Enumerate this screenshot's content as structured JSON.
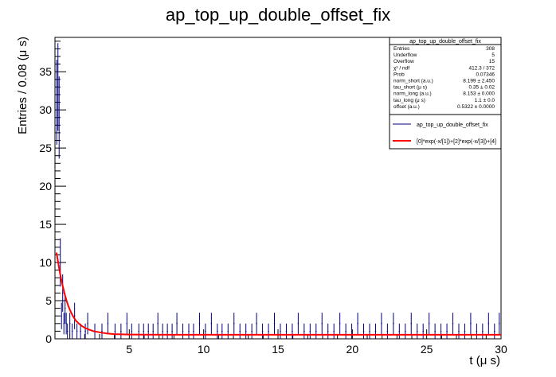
{
  "chart_data": {
    "type": "bar",
    "title": "ap_top_up_double_offset_fix",
    "xlabel": "t (μ s)",
    "ylabel": "Entries / 0.08 (μ s)",
    "xlim": [
      0,
      30
    ],
    "ylim": [
      0,
      39.5
    ],
    "x_ticks": [
      5,
      10,
      15,
      20,
      25,
      30
    ],
    "y_ticks": [
      0,
      5,
      10,
      15,
      20,
      25,
      30,
      35
    ],
    "bin_width": 0.08,
    "grid": false,
    "histogram": {
      "name": "ap_top_up_double_offset_fix",
      "color": "#000080",
      "style": "error bars",
      "points": [
        [
          0.12,
          31
        ],
        [
          0.2,
          33
        ],
        [
          0.28,
          29
        ],
        [
          0.36,
          10
        ],
        [
          0.44,
          3
        ],
        [
          0.52,
          6
        ],
        [
          0.6,
          2
        ],
        [
          0.68,
          4
        ],
        [
          0.76,
          2
        ],
        [
          0.84,
          1
        ],
        [
          1.0,
          2
        ],
        [
          1.16,
          1
        ],
        [
          1.32,
          3
        ],
        [
          1.48,
          1
        ],
        [
          1.72,
          1
        ],
        [
          2.04,
          1
        ],
        [
          2.2,
          2
        ],
        [
          2.68,
          1
        ],
        [
          3.16,
          1
        ],
        [
          3.56,
          2
        ],
        [
          4.04,
          1
        ],
        [
          4.44,
          1
        ],
        [
          4.84,
          2
        ],
        [
          5.16,
          1
        ],
        [
          5.64,
          1
        ],
        [
          5.96,
          1
        ],
        [
          6.28,
          1
        ],
        [
          6.6,
          1
        ],
        [
          6.92,
          2
        ],
        [
          7.24,
          1
        ],
        [
          7.56,
          1
        ],
        [
          7.88,
          1
        ],
        [
          8.2,
          2
        ],
        [
          8.6,
          1
        ],
        [
          9.0,
          1
        ],
        [
          9.32,
          1
        ],
        [
          9.72,
          2
        ],
        [
          10.12,
          1
        ],
        [
          10.52,
          2
        ],
        [
          10.92,
          1
        ],
        [
          11.24,
          1
        ],
        [
          11.64,
          1
        ],
        [
          12.04,
          2
        ],
        [
          12.44,
          1
        ],
        [
          12.84,
          1
        ],
        [
          13.24,
          1
        ],
        [
          13.56,
          2
        ],
        [
          13.96,
          1
        ],
        [
          14.36,
          1
        ],
        [
          14.76,
          2
        ],
        [
          15.16,
          1
        ],
        [
          15.56,
          1
        ],
        [
          15.96,
          1
        ],
        [
          16.36,
          2
        ],
        [
          16.76,
          1
        ],
        [
          17.16,
          1
        ],
        [
          17.56,
          1
        ],
        [
          17.96,
          2
        ],
        [
          18.36,
          1
        ],
        [
          18.76,
          1
        ],
        [
          19.16,
          2
        ],
        [
          19.56,
          1
        ],
        [
          19.96,
          1
        ],
        [
          20.36,
          2
        ],
        [
          20.76,
          1
        ],
        [
          21.16,
          1
        ],
        [
          21.56,
          1
        ],
        [
          21.96,
          2
        ],
        [
          22.36,
          1
        ],
        [
          22.76,
          2
        ],
        [
          23.16,
          1
        ],
        [
          23.56,
          1
        ],
        [
          23.96,
          2
        ],
        [
          24.36,
          1
        ],
        [
          24.76,
          1
        ],
        [
          25.16,
          2
        ],
        [
          25.56,
          1
        ],
        [
          25.96,
          1
        ],
        [
          26.36,
          1
        ],
        [
          26.76,
          2
        ],
        [
          27.16,
          1
        ],
        [
          27.56,
          1
        ],
        [
          27.96,
          2
        ],
        [
          28.36,
          1
        ],
        [
          28.76,
          1
        ],
        [
          29.16,
          2
        ],
        [
          29.56,
          1
        ],
        [
          29.88,
          2
        ]
      ]
    },
    "fit": {
      "name": "[0]*exp(-x/[1])+[2]*exp(-x/[3])+[4]",
      "color": "#ff0000",
      "curve": [
        [
          0.1,
          11.3
        ],
        [
          0.2,
          10.2
        ],
        [
          0.3,
          9.0
        ],
        [
          0.4,
          8.0
        ],
        [
          0.5,
          7.1
        ],
        [
          0.6,
          6.3
        ],
        [
          0.7,
          5.5
        ],
        [
          0.8,
          4.9
        ],
        [
          0.9,
          4.3
        ],
        [
          1.0,
          3.8
        ],
        [
          1.2,
          3.0
        ],
        [
          1.4,
          2.4
        ],
        [
          1.6,
          2.0
        ],
        [
          1.8,
          1.7
        ],
        [
          2.0,
          1.45
        ],
        [
          2.3,
          1.2
        ],
        [
          2.6,
          1.0
        ],
        [
          3.0,
          0.85
        ],
        [
          3.5,
          0.7
        ],
        [
          4.0,
          0.62
        ],
        [
          5.0,
          0.56
        ],
        [
          6.0,
          0.54
        ],
        [
          8.0,
          0.533
        ],
        [
          30.0,
          0.5322
        ]
      ]
    },
    "stats_box": {
      "title": "ap_top_up_double_offset_fix",
      "rows": [
        {
          "label": "Entries",
          "value": "308"
        },
        {
          "label": "Underflow",
          "value": "5"
        },
        {
          "label": "Overflow",
          "value": "15"
        },
        {
          "label": "χ² / ndf",
          "value": "412.3 / 372"
        },
        {
          "label": "Prob",
          "value": "0.07346"
        },
        {
          "label": "norm_short (a.u.)",
          "value": "8.199 ± 2.450"
        },
        {
          "label": "tau_short (μ s)",
          "value": "0.35 ± 0.02"
        },
        {
          "label": "norm_long (a.u.)",
          "value": "8.153 ± 0.000"
        },
        {
          "label": "tau_long (μ s)",
          "value": "1.1 ± 0.0"
        },
        {
          "label": "offset (a.u.)",
          "value": "0.5322 ± 0.0000"
        }
      ]
    },
    "legend": {
      "position": "top-right",
      "entries": [
        {
          "label": "ap_top_up_double_offset_fix",
          "color": "#000080"
        },
        {
          "label": "[0]*exp(-x/[1])+[2]*exp(-x/[3])+[4]",
          "color": "#ff0000"
        }
      ]
    }
  }
}
